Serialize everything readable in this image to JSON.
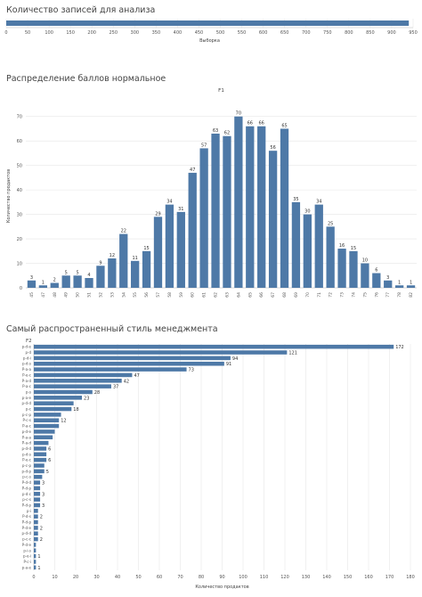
{
  "panels": [
    {
      "title": "Количество записей для анализа"
    },
    {
      "title": "Распределение баллов нормальное"
    },
    {
      "title": "Самый распространенный стиль менеджмента"
    }
  ],
  "colors": {
    "bar": "#4e79a7",
    "grid": "#e6e6e6",
    "axis": "#bbbbbb",
    "text": "#555555"
  },
  "chart_data": [
    {
      "type": "bar",
      "orientation": "horizontal",
      "values": [
        940
      ],
      "xlabel": "Выборка",
      "xlim": [
        0,
        950
      ],
      "xticks": [
        0,
        50,
        100,
        150,
        200,
        250,
        300,
        350,
        400,
        450,
        500,
        550,
        600,
        650,
        700,
        750,
        800,
        850,
        900,
        950
      ],
      "grid": true
    },
    {
      "type": "bar",
      "title": "F1",
      "ylabel": "Количество продактов",
      "ylim": [
        0,
        75
      ],
      "yticks": [
        0,
        10,
        20,
        30,
        40,
        50,
        60,
        70
      ],
      "categories": [
        "45",
        "47",
        "48",
        "49",
        "50",
        "51",
        "52",
        "53",
        "54",
        "55",
        "56",
        "57",
        "58",
        "59",
        "60",
        "61",
        "62",
        "63",
        "64",
        "65",
        "66",
        "67",
        "68",
        "69",
        "70",
        "71",
        "72",
        "73",
        "74",
        "75",
        "76",
        "77",
        "78",
        "82"
      ],
      "values": [
        3,
        1,
        2,
        5,
        5,
        4,
        9,
        12,
        22,
        11,
        15,
        29,
        34,
        31,
        47,
        57,
        63,
        62,
        70,
        66,
        66,
        56,
        65,
        35,
        30,
        34,
        25,
        16,
        15,
        10,
        6,
        3,
        1,
        1
      ],
      "grid": true
    },
    {
      "type": "bar",
      "orientation": "horizontal",
      "title": "F2",
      "xlabel": "Количество продактов",
      "xlim": [
        0,
        180
      ],
      "xticks": [
        0,
        10,
        20,
        30,
        40,
        50,
        60,
        70,
        80,
        90,
        100,
        110,
        120,
        130,
        140,
        150,
        160,
        170,
        180
      ],
      "categories": [
        "p-d-e",
        "p-d",
        "p-d-i",
        "p-d-s",
        "P-a-a",
        "P-e-c",
        "P-a-d",
        "P-a-c",
        "p-s",
        "p-a-e",
        "p-d-d",
        "p-c",
        "p-c-p",
        "P-c-s",
        "P-a-c",
        "p-d-e",
        "P-a-a",
        "P-a-d",
        "p-d-d",
        "p-d-s",
        "P-e-c",
        "p-c-p",
        "p-d-p",
        "p-c-s",
        "P-d-d",
        "P-d-p",
        "p-d-c",
        "p-c-s",
        "P-d-p",
        "p-i",
        "P-d-s",
        "P-d-p",
        "P-d-e",
        "p-d-d",
        "p-c-c",
        "P-d-e",
        "p-i-s",
        "p-e-i",
        "P-c-i",
        "p-a-e"
      ],
      "values": [
        172,
        121,
        94,
        91,
        73,
        47,
        42,
        37,
        28,
        23,
        19,
        18,
        13,
        12,
        12,
        10,
        9,
        7,
        6,
        6,
        6,
        5,
        5,
        4,
        3,
        3,
        3,
        3,
        3,
        2,
        2,
        2,
        2,
        2,
        2,
        1,
        1,
        1,
        1,
        1
      ],
      "labels": [
        "172",
        "121",
        "94",
        "91",
        "73",
        "47",
        "42",
        "37",
        "28",
        "23",
        "",
        "18",
        "",
        "12",
        "",
        "",
        "",
        "",
        "6",
        "",
        "6",
        "",
        "5",
        "",
        "3",
        "",
        "3",
        "",
        "3",
        "",
        "2",
        "",
        "2",
        "",
        "2",
        "",
        "",
        "1",
        "",
        "1"
      ],
      "grid": true
    }
  ]
}
